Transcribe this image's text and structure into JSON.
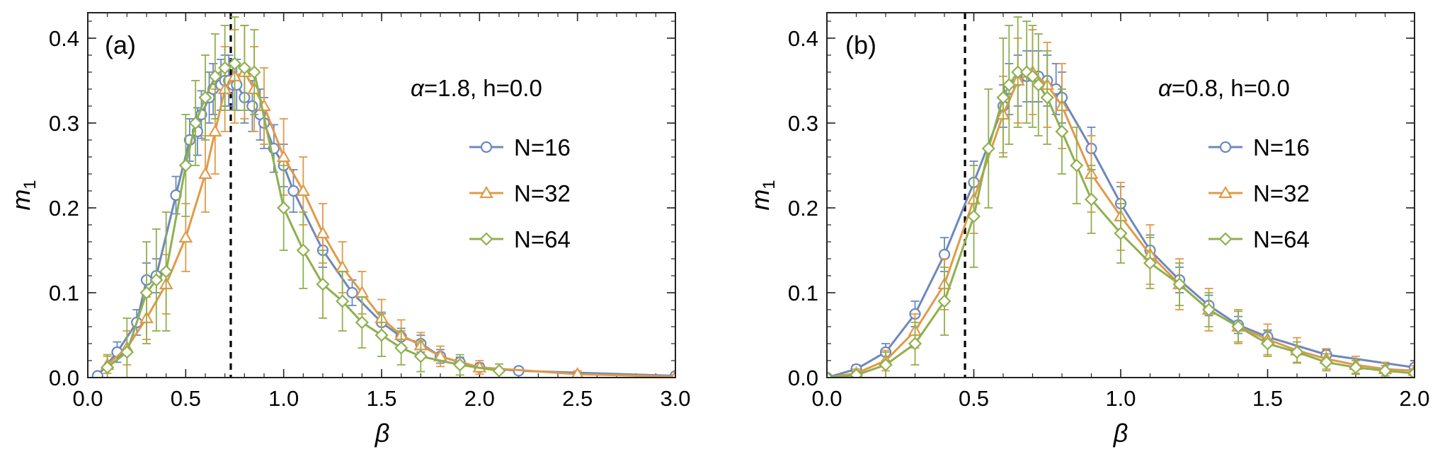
{
  "colors": {
    "N16": "#6d88bd",
    "N32": "#e09a48",
    "N64": "#8fb04e",
    "critical_line": "#000000"
  },
  "chart_data": [
    {
      "type": "line",
      "panel_label": "(a)",
      "annotation": {
        "alpha_symbol": "α",
        "text": "=1.8, h=0.0"
      },
      "xlabel": "β",
      "ylabel": "m",
      "ylabel_subscript": "1",
      "xlim": [
        0,
        3.0
      ],
      "ylim": [
        0,
        0.43
      ],
      "xticks": [
        0,
        0.5,
        1.0,
        1.5,
        2.0,
        2.5,
        3.0
      ],
      "xtick_labels": [
        "0.0",
        "0.5",
        "1.0",
        "1.5",
        "2.0",
        "2.5",
        "3.0"
      ],
      "yticks": [
        0,
        0.1,
        0.2,
        0.3,
        0.4
      ],
      "ytick_labels": [
        "0.0",
        "0.1",
        "0.2",
        "0.3",
        "0.4"
      ],
      "critical_beta": 0.73,
      "legend_position": "right",
      "series": [
        {
          "name": "N=16",
          "marker": "circle",
          "color_key": "N16",
          "x": [
            0.05,
            0.15,
            0.25,
            0.3,
            0.35,
            0.45,
            0.52,
            0.56,
            0.58,
            0.62,
            0.64,
            0.68,
            0.7,
            0.72,
            0.74,
            0.76,
            0.8,
            0.84,
            0.88,
            0.9,
            0.95,
            1.0,
            1.05,
            1.2,
            1.35,
            1.5,
            1.6,
            1.7,
            1.8,
            1.9,
            2.0,
            2.2,
            3.0
          ],
          "y": [
            0.002,
            0.03,
            0.065,
            0.115,
            0.12,
            0.215,
            0.28,
            0.29,
            0.31,
            0.33,
            0.34,
            0.345,
            0.35,
            0.35,
            0.345,
            0.345,
            0.33,
            0.32,
            0.31,
            0.3,
            0.27,
            0.25,
            0.22,
            0.15,
            0.1,
            0.065,
            0.048,
            0.04,
            0.025,
            0.018,
            0.012,
            0.008,
            0.002
          ],
          "err": [
            0.003,
            0.012,
            0.015,
            0.02,
            0.02,
            0.022,
            0.025,
            0.028,
            0.028,
            0.03,
            0.03,
            0.03,
            0.03,
            0.03,
            0.03,
            0.03,
            0.03,
            0.03,
            0.03,
            0.03,
            0.028,
            0.025,
            0.025,
            0.02,
            0.015,
            0.012,
            0.01,
            0.01,
            0.008,
            0.006,
            0.005,
            0.004,
            0.002
          ]
        },
        {
          "name": "N=32",
          "marker": "triangle",
          "color_key": "N32",
          "x": [
            0.1,
            0.2,
            0.3,
            0.4,
            0.5,
            0.6,
            0.65,
            0.7,
            0.75,
            0.8,
            0.85,
            0.9,
            1.0,
            1.1,
            1.2,
            1.3,
            1.4,
            1.5,
            1.6,
            1.7,
            1.8,
            2.0,
            2.5,
            3.0
          ],
          "y": [
            0.015,
            0.035,
            0.07,
            0.11,
            0.165,
            0.24,
            0.29,
            0.34,
            0.355,
            0.36,
            0.34,
            0.32,
            0.26,
            0.22,
            0.17,
            0.13,
            0.1,
            0.07,
            0.05,
            0.038,
            0.025,
            0.012,
            0.004,
            0.001
          ],
          "err": [
            0.01,
            0.02,
            0.025,
            0.035,
            0.04,
            0.045,
            0.05,
            0.05,
            0.055,
            0.055,
            0.05,
            0.045,
            0.045,
            0.04,
            0.035,
            0.03,
            0.025,
            0.022,
            0.018,
            0.015,
            0.012,
            0.008,
            0.004,
            0.002
          ]
        },
        {
          "name": "N=64",
          "marker": "diamond",
          "color_key": "N64",
          "x": [
            0.1,
            0.2,
            0.3,
            0.35,
            0.4,
            0.5,
            0.55,
            0.6,
            0.65,
            0.7,
            0.75,
            0.8,
            0.85,
            1.0,
            1.1,
            1.2,
            1.3,
            1.4,
            1.5,
            1.6,
            1.7,
            1.9,
            2.1
          ],
          "y": [
            0.012,
            0.03,
            0.1,
            0.115,
            0.125,
            0.25,
            0.3,
            0.33,
            0.355,
            0.365,
            0.37,
            0.365,
            0.36,
            0.2,
            0.15,
            0.11,
            0.09,
            0.065,
            0.05,
            0.035,
            0.025,
            0.015,
            0.008
          ],
          "err": [
            0.015,
            0.04,
            0.06,
            0.06,
            0.07,
            0.06,
            0.05,
            0.05,
            0.05,
            0.05,
            0.055,
            0.05,
            0.05,
            0.05,
            0.045,
            0.04,
            0.035,
            0.03,
            0.025,
            0.02,
            0.018,
            0.012,
            0.008
          ]
        }
      ]
    },
    {
      "type": "line",
      "panel_label": "(b)",
      "annotation": {
        "alpha_symbol": "α",
        "text": "=0.8, h=0.0"
      },
      "xlabel": "β",
      "ylabel": "m",
      "ylabel_subscript": "1",
      "xlim": [
        0,
        2.0
      ],
      "ylim": [
        0,
        0.43
      ],
      "xticks": [
        0,
        0.5,
        1.0,
        1.5,
        2.0
      ],
      "xtick_labels": [
        "0.0",
        "0.5",
        "1.0",
        "1.5",
        "2.0"
      ],
      "yticks": [
        0,
        0.1,
        0.2,
        0.3,
        0.4
      ],
      "ytick_labels": [
        "0.0",
        "0.1",
        "0.2",
        "0.3",
        "0.4"
      ],
      "critical_beta": 0.47,
      "legend_position": "right",
      "series": [
        {
          "name": "N=16",
          "marker": "circle",
          "color_key": "N16",
          "x": [
            0.0,
            0.1,
            0.2,
            0.3,
            0.4,
            0.5,
            0.6,
            0.62,
            0.65,
            0.68,
            0.7,
            0.72,
            0.75,
            0.78,
            0.8,
            0.9,
            1.0,
            1.1,
            1.2,
            1.3,
            1.4,
            1.5,
            1.7,
            2.0
          ],
          "y": [
            0.0,
            0.01,
            0.03,
            0.075,
            0.145,
            0.23,
            0.32,
            0.34,
            0.35,
            0.355,
            0.355,
            0.355,
            0.35,
            0.34,
            0.33,
            0.27,
            0.205,
            0.15,
            0.115,
            0.085,
            0.062,
            0.048,
            0.027,
            0.012
          ],
          "err": [
            0.002,
            0.005,
            0.01,
            0.015,
            0.02,
            0.025,
            0.025,
            0.03,
            0.03,
            0.03,
            0.03,
            0.03,
            0.03,
            0.03,
            0.03,
            0.025,
            0.02,
            0.018,
            0.015,
            0.012,
            0.01,
            0.008,
            0.006,
            0.004
          ]
        },
        {
          "name": "N=32",
          "marker": "triangle",
          "color_key": "N32",
          "x": [
            0.0,
            0.1,
            0.2,
            0.3,
            0.4,
            0.5,
            0.6,
            0.65,
            0.7,
            0.75,
            0.8,
            0.9,
            1.0,
            1.1,
            1.2,
            1.3,
            1.4,
            1.5,
            1.6,
            1.7,
            1.8,
            1.9,
            2.0
          ],
          "y": [
            0.0,
            0.005,
            0.02,
            0.055,
            0.11,
            0.21,
            0.31,
            0.35,
            0.36,
            0.345,
            0.32,
            0.24,
            0.19,
            0.145,
            0.11,
            0.08,
            0.06,
            0.045,
            0.032,
            0.022,
            0.015,
            0.01,
            0.008
          ],
          "err": [
            0.002,
            0.005,
            0.012,
            0.02,
            0.03,
            0.04,
            0.045,
            0.05,
            0.05,
            0.05,
            0.05,
            0.045,
            0.04,
            0.035,
            0.03,
            0.025,
            0.02,
            0.018,
            0.015,
            0.012,
            0.01,
            0.008,
            0.006
          ]
        },
        {
          "name": "N=64",
          "marker": "diamond",
          "color_key": "N64",
          "x": [
            0.0,
            0.1,
            0.2,
            0.3,
            0.4,
            0.5,
            0.55,
            0.6,
            0.62,
            0.65,
            0.68,
            0.7,
            0.72,
            0.75,
            0.8,
            0.85,
            0.9,
            1.0,
            1.1,
            1.2,
            1.3,
            1.4,
            1.5,
            1.6,
            1.7,
            1.8,
            1.9,
            2.0
          ],
          "y": [
            0.0,
            0.003,
            0.015,
            0.04,
            0.09,
            0.19,
            0.27,
            0.33,
            0.345,
            0.36,
            0.36,
            0.355,
            0.345,
            0.33,
            0.29,
            0.25,
            0.21,
            0.17,
            0.135,
            0.11,
            0.08,
            0.06,
            0.04,
            0.03,
            0.018,
            0.012,
            0.008,
            0.005
          ],
          "err": [
            0.002,
            0.005,
            0.015,
            0.025,
            0.04,
            0.06,
            0.07,
            0.07,
            0.07,
            0.065,
            0.06,
            0.06,
            0.06,
            0.055,
            0.05,
            0.045,
            0.04,
            0.035,
            0.03,
            0.025,
            0.02,
            0.018,
            0.015,
            0.012,
            0.01,
            0.008,
            0.006,
            0.005
          ]
        }
      ]
    }
  ]
}
